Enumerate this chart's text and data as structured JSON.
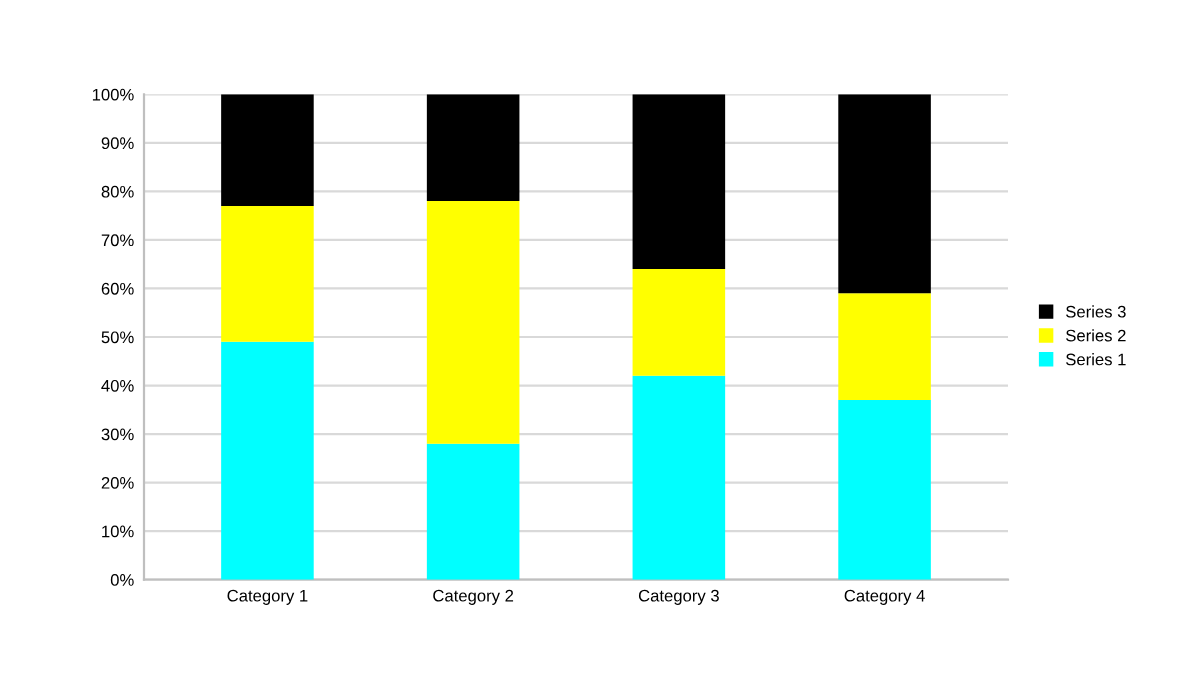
{
  "chart_data": {
    "type": "bar",
    "stacked": true,
    "categories": [
      "Category 1",
      "Category 2",
      "Category 3",
      "Category 4"
    ],
    "series": [
      {
        "name": "Series 1",
        "color": "#00ffff",
        "values": [
          49,
          28,
          42,
          37
        ]
      },
      {
        "name": "Series 2",
        "color": "#ffff00",
        "values": [
          28,
          50,
          22,
          22
        ]
      },
      {
        "name": "Series 3",
        "color": "#000000",
        "values": [
          23,
          22,
          36,
          41
        ]
      }
    ],
    "ylim": [
      0,
      100
    ],
    "yticks": [
      {
        "value": 0,
        "label": "0%"
      },
      {
        "value": 10,
        "label": "10%"
      },
      {
        "value": 20,
        "label": "20%"
      },
      {
        "value": 30,
        "label": "30%"
      },
      {
        "value": 40,
        "label": "40%"
      },
      {
        "value": 50,
        "label": "50%"
      },
      {
        "value": 60,
        "label": "60%"
      },
      {
        "value": 70,
        "label": "70%"
      },
      {
        "value": 80,
        "label": "80%"
      },
      {
        "value": 90,
        "label": "90%"
      },
      {
        "value": 100,
        "label": "100%"
      }
    ],
    "grid": "y",
    "legend": "right"
  }
}
